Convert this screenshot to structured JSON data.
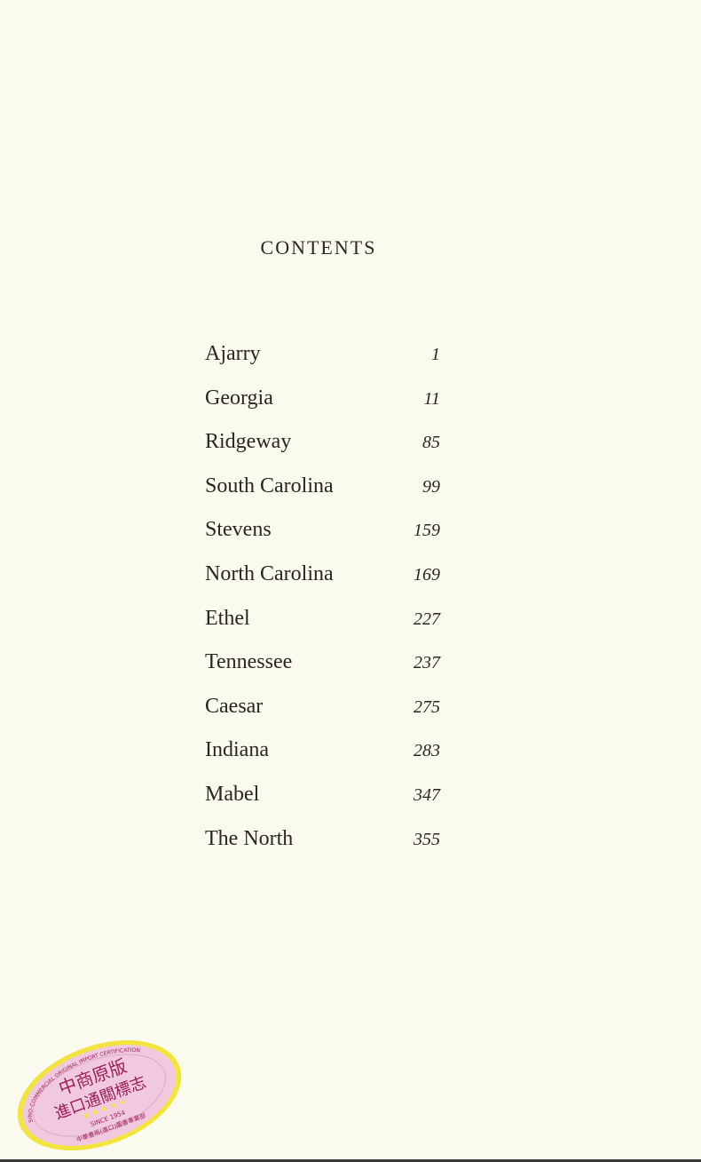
{
  "title": "CONTENTS",
  "entries": [
    {
      "chapter": "Ajarry",
      "page": "1"
    },
    {
      "chapter": "Georgia",
      "page": "11"
    },
    {
      "chapter": "Ridgeway",
      "page": "85"
    },
    {
      "chapter": "South Carolina",
      "page": "99"
    },
    {
      "chapter": "Stevens",
      "page": "159"
    },
    {
      "chapter": "North Carolina",
      "page": "169"
    },
    {
      "chapter": "Ethel",
      "page": "227"
    },
    {
      "chapter": "Tennessee",
      "page": "237"
    },
    {
      "chapter": "Caesar",
      "page": "275"
    },
    {
      "chapter": "Indiana",
      "page": "283"
    },
    {
      "chapter": "Mabel",
      "page": "347"
    },
    {
      "chapter": "The North",
      "page": "355"
    }
  ],
  "seal": {
    "ring_text": "SINO-COMMERCIAL ORIGINAL IMPORT CERTIFICATION",
    "line1": "中商原版",
    "line2": "進口通關標志",
    "since": "SINCE 1954",
    "footer": "中華書局(進口)圖書事業部",
    "colors": {
      "fill": "#f1c9de",
      "border": "#f3e43c",
      "text": "#9c1f5a",
      "stars": "#f5e23a"
    }
  }
}
